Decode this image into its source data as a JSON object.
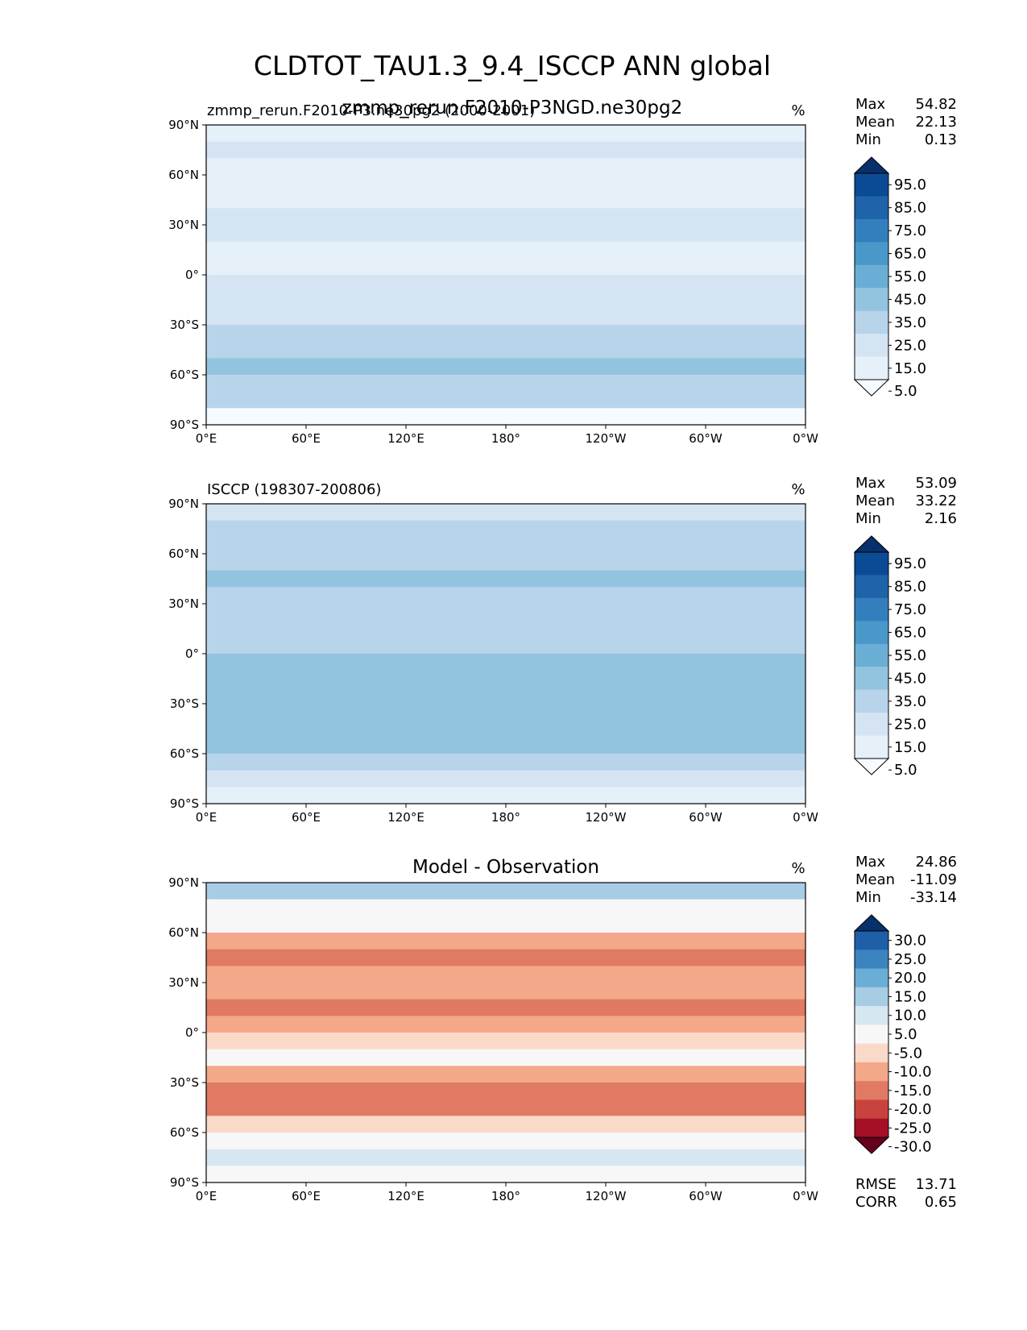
{
  "figure": {
    "title": "CLDTOT_TAU1.3_9.4_ISCCP ANN global"
  },
  "chart_data": [
    {
      "type": "heatmap",
      "title": "",
      "left_title": "zmmp_rerun.F2010-P3.ne30pg2 (2000-2001)",
      "overlay_title": "zmmp_rerun.F2010-P3NGD.ne30pg2",
      "units": "%",
      "stats": {
        "max_label": "Max",
        "max": "54.82",
        "mean_label": "Mean",
        "mean": "22.13",
        "min_label": "Min",
        "min": "0.13"
      },
      "colorbar": {
        "levels": [
          "95.0",
          "85.0",
          "75.0",
          "65.0",
          "55.0",
          "45.0",
          "35.0",
          "25.0",
          "15.0",
          "5.0"
        ],
        "colors": [
          "#08306b",
          "#0b4b96",
          "#1f63aa",
          "#337fbd",
          "#4a97c9",
          "#6aaed6",
          "#93c4df",
          "#b7d4ea",
          "#d4e4f2",
          "#e6f0f9",
          "#f7fbff"
        ]
      },
      "x_ticks": [
        "0°E",
        "60°E",
        "120°E",
        "180°",
        "120°W",
        "60°W",
        "0°W"
      ],
      "y_ticks": [
        "90°N",
        "60°N",
        "30°N",
        "0°",
        "30°S",
        "60°S",
        "90°S"
      ],
      "zonal_band_values": [
        12,
        16,
        14,
        10,
        13,
        18,
        16,
        14,
        13,
        17,
        20,
        24,
        28,
        30,
        37,
        34,
        30,
        4
      ]
    },
    {
      "type": "heatmap",
      "title": "",
      "left_title": "ISCCP (198307-200806)",
      "units": "%",
      "stats": {
        "max_label": "Max",
        "max": "53.09",
        "mean_label": "Mean",
        "mean": "33.22",
        "min_label": "Min",
        "min": "2.16"
      },
      "colorbar": {
        "levels": [
          "95.0",
          "85.0",
          "75.0",
          "65.0",
          "55.0",
          "45.0",
          "35.0",
          "25.0",
          "15.0",
          "5.0"
        ],
        "colors": [
          "#08306b",
          "#0b4b96",
          "#1f63aa",
          "#337fbd",
          "#4a97c9",
          "#6aaed6",
          "#93c4df",
          "#b7d4ea",
          "#d4e4f2",
          "#e6f0f9",
          "#f7fbff"
        ]
      },
      "x_ticks": [
        "0°E",
        "60°E",
        "120°E",
        "180°",
        "120°W",
        "60°W",
        "0°W"
      ],
      "y_ticks": [
        "90°N",
        "60°N",
        "30°N",
        "0°",
        "30°S",
        "60°S",
        "90°S"
      ],
      "zonal_band_values": [
        24,
        28,
        32,
        34,
        38,
        34,
        30,
        33,
        30,
        36,
        38,
        40,
        44,
        42,
        40,
        34,
        18,
        10
      ]
    },
    {
      "type": "heatmap",
      "title": "Model - Observation",
      "units": "%",
      "stats": {
        "max_label": "Max",
        "max": "24.86",
        "mean_label": "Mean",
        "mean": "-11.09",
        "min_label": "Min",
        "min": "-33.14"
      },
      "colorbar": {
        "levels": [
          "30.0",
          "25.0",
          "20.0",
          "15.0",
          "10.0",
          "5.0",
          "-5.0",
          "-10.0",
          "-15.0",
          "-20.0",
          "-25.0",
          "-30.0"
        ],
        "colors": [
          "#08306b",
          "#1f5fa8",
          "#3b84bf",
          "#6aaed6",
          "#a6cde3",
          "#d6e7f1",
          "#f7f7f7",
          "#fbd9c9",
          "#f3a889",
          "#e07a62",
          "#c8433d",
          "#a51027",
          "#67001f"
        ]
      },
      "x_ticks": [
        "0°E",
        "60°E",
        "120°E",
        "180°",
        "120°W",
        "60°W",
        "0°W"
      ],
      "y_ticks": [
        "90°N",
        "60°N",
        "30°N",
        "0°",
        "30°S",
        "60°S",
        "90°S"
      ],
      "zonal_band_values": [
        10,
        2,
        -4,
        -14,
        -18,
        -14,
        -12,
        -16,
        -14,
        -10,
        -4,
        -12,
        -16,
        -18,
        -8,
        -2,
        6,
        0
      ],
      "metrics": {
        "rmse_label": "RMSE",
        "rmse": "13.71",
        "corr_label": "CORR",
        "corr": "0.65"
      }
    }
  ]
}
